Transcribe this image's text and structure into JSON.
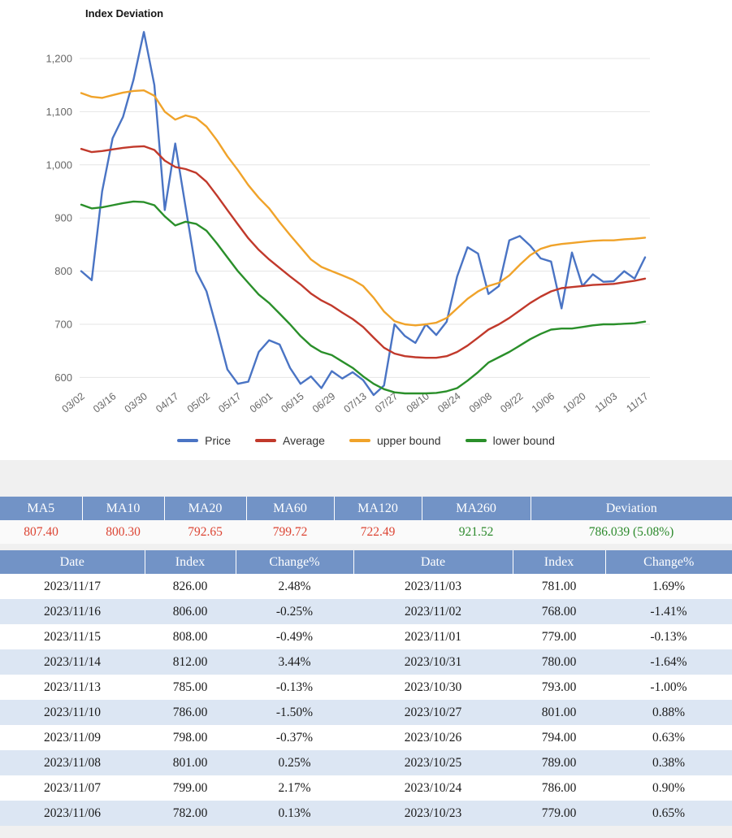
{
  "chart_data": {
    "type": "line",
    "title": "Index Deviation",
    "x_tick_labels": [
      "03/02",
      "03/16",
      "03/30",
      "04/17",
      "05/02",
      "05/17",
      "06/01",
      "06/15",
      "06/29",
      "07/13",
      "07/27",
      "08/10",
      "08/24",
      "09/08",
      "09/22",
      "10/06",
      "10/20",
      "11/03",
      "11/17"
    ],
    "x_sampling": "55 evenly spaced points spanning the tick range (3 per tick interval)",
    "yticks": [
      {
        "value": 600,
        "label": "600"
      },
      {
        "value": 700,
        "label": "700"
      },
      {
        "value": 800,
        "label": "800"
      },
      {
        "value": 900,
        "label": "900"
      },
      {
        "value": 1000,
        "label": "1,000"
      },
      {
        "value": 1100,
        "label": "1,100"
      },
      {
        "value": 1200,
        "label": "1,200"
      }
    ],
    "ylim": [
      550,
      1270
    ],
    "grid": true,
    "legend_position": "bottom",
    "series": [
      {
        "name": "Price",
        "color": "#4a74c4",
        "values": [
          800,
          783,
          950,
          1050,
          1090,
          1160,
          1250,
          1150,
          915,
          1040,
          920,
          800,
          762,
          690,
          615,
          588,
          592,
          648,
          670,
          662,
          618,
          588,
          602,
          580,
          612,
          598,
          610,
          595,
          567,
          585,
          700,
          678,
          665,
          700,
          680,
          705,
          790,
          845,
          833,
          757,
          772,
          858,
          866,
          848,
          824,
          818,
          730,
          835,
          772,
          794,
          780,
          781,
          800,
          786,
          826
        ]
      },
      {
        "name": "Average",
        "color": "#c1392b",
        "values": [
          1030,
          1024,
          1026,
          1029,
          1032,
          1034,
          1035,
          1028,
          1008,
          996,
          992,
          985,
          968,
          942,
          915,
          888,
          862,
          840,
          822,
          806,
          790,
          775,
          758,
          745,
          735,
          722,
          710,
          695,
          675,
          656,
          645,
          640,
          638,
          637,
          637,
          640,
          648,
          660,
          675,
          690,
          700,
          712,
          726,
          740,
          752,
          762,
          768,
          770,
          772,
          774,
          775,
          776,
          779,
          782,
          786
        ]
      },
      {
        "name": "upper bound",
        "color": "#f0a32a",
        "values": [
          1135,
          1128,
          1126,
          1131,
          1136,
          1139,
          1140,
          1130,
          1100,
          1085,
          1093,
          1088,
          1072,
          1046,
          1016,
          990,
          962,
          938,
          918,
          892,
          868,
          845,
          822,
          808,
          800,
          792,
          784,
          772,
          750,
          724,
          706,
          700,
          698,
          700,
          703,
          712,
          730,
          748,
          762,
          772,
          778,
          792,
          812,
          830,
          842,
          848,
          851,
          853,
          855,
          857,
          858,
          858,
          860,
          861,
          863
        ]
      },
      {
        "name": "lower bound",
        "color": "#2a8f2a",
        "values": [
          925,
          918,
          920,
          924,
          928,
          931,
          930,
          924,
          903,
          886,
          893,
          889,
          876,
          852,
          826,
          800,
          778,
          756,
          740,
          720,
          700,
          678,
          660,
          648,
          642,
          630,
          618,
          602,
          588,
          578,
          572,
          570,
          570,
          570,
          571,
          574,
          580,
          594,
          610,
          628,
          638,
          648,
          660,
          672,
          682,
          690,
          692,
          692,
          695,
          698,
          700,
          700,
          701,
          702,
          705
        ]
      }
    ]
  },
  "ma_table": {
    "headers": [
      "MA5",
      "MA10",
      "MA20",
      "MA60",
      "MA120",
      "MA260",
      "Deviation"
    ],
    "values": [
      {
        "text": "807.40",
        "tone": "red"
      },
      {
        "text": "800.30",
        "tone": "red"
      },
      {
        "text": "792.65",
        "tone": "red"
      },
      {
        "text": "799.72",
        "tone": "red"
      },
      {
        "text": "722.49",
        "tone": "red"
      },
      {
        "text": "921.52",
        "tone": "green"
      },
      {
        "text": "786.039 (5.08%)",
        "tone": "green"
      }
    ]
  },
  "history_table": {
    "headers": [
      "Date",
      "Index",
      "Change%",
      "Date",
      "Index",
      "Change%"
    ],
    "rows": [
      [
        "2023/11/17",
        "826.00",
        "2.48%",
        "2023/11/03",
        "781.00",
        "1.69%"
      ],
      [
        "2023/11/16",
        "806.00",
        "-0.25%",
        "2023/11/02",
        "768.00",
        "-1.41%"
      ],
      [
        "2023/11/15",
        "808.00",
        "-0.49%",
        "2023/11/01",
        "779.00",
        "-0.13%"
      ],
      [
        "2023/11/14",
        "812.00",
        "3.44%",
        "2023/10/31",
        "780.00",
        "-1.64%"
      ],
      [
        "2023/11/13",
        "785.00",
        "-0.13%",
        "2023/10/30",
        "793.00",
        "-1.00%"
      ],
      [
        "2023/11/10",
        "786.00",
        "-1.50%",
        "2023/10/27",
        "801.00",
        "0.88%"
      ],
      [
        "2023/11/09",
        "798.00",
        "-0.37%",
        "2023/10/26",
        "794.00",
        "0.63%"
      ],
      [
        "2023/11/08",
        "801.00",
        "0.25%",
        "2023/10/25",
        "789.00",
        "0.38%"
      ],
      [
        "2023/11/07",
        "799.00",
        "2.17%",
        "2023/10/24",
        "786.00",
        "0.90%"
      ],
      [
        "2023/11/06",
        "782.00",
        "0.13%",
        "2023/10/23",
        "779.00",
        "0.65%"
      ]
    ]
  },
  "colors": {
    "header_bg": "#7293c6",
    "row_alt": "#dce6f3",
    "positive": "#2c8a2c",
    "negative": "#dc4433",
    "gridline": "#e5e5e5",
    "axis_text": "#676767"
  }
}
